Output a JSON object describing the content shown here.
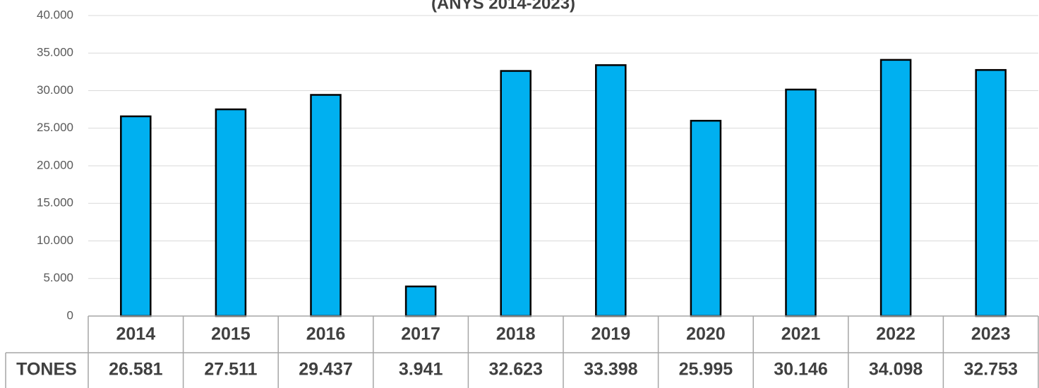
{
  "chart_data": {
    "type": "bar",
    "title": "(ANYS 2014-2023)",
    "categories": [
      "2014",
      "2015",
      "2016",
      "2017",
      "2018",
      "2019",
      "2020",
      "2021",
      "2022",
      "2023"
    ],
    "series": [
      {
        "name": "TONES",
        "color": "#00b0f0",
        "values": [
          26581,
          27511,
          29437,
          3941,
          32623,
          33398,
          25995,
          30146,
          34098,
          32753
        ],
        "value_labels": [
          "26.581",
          "27.511",
          "29.437",
          "3.941",
          "32.623",
          "33.398",
          "25.995",
          "30.146",
          "34.098",
          "32.753"
        ]
      }
    ],
    "ylim": [
      0,
      40000
    ],
    "yticks": [
      0,
      {
        "value": 5000,
        "label": "5.000"
      },
      {
        "value": 10000,
        "label": "10.000"
      },
      {
        "value": 15000,
        "label": "15.000"
      },
      {
        "value": 20000,
        "label": "20.000"
      },
      {
        "value": 25000,
        "label": "25.000"
      },
      {
        "value": 30000,
        "label": "30.000"
      },
      {
        "value": 35000,
        "label": "35.000"
      },
      {
        "value": 40000,
        "label": "40.000"
      }
    ],
    "grid": true
  }
}
